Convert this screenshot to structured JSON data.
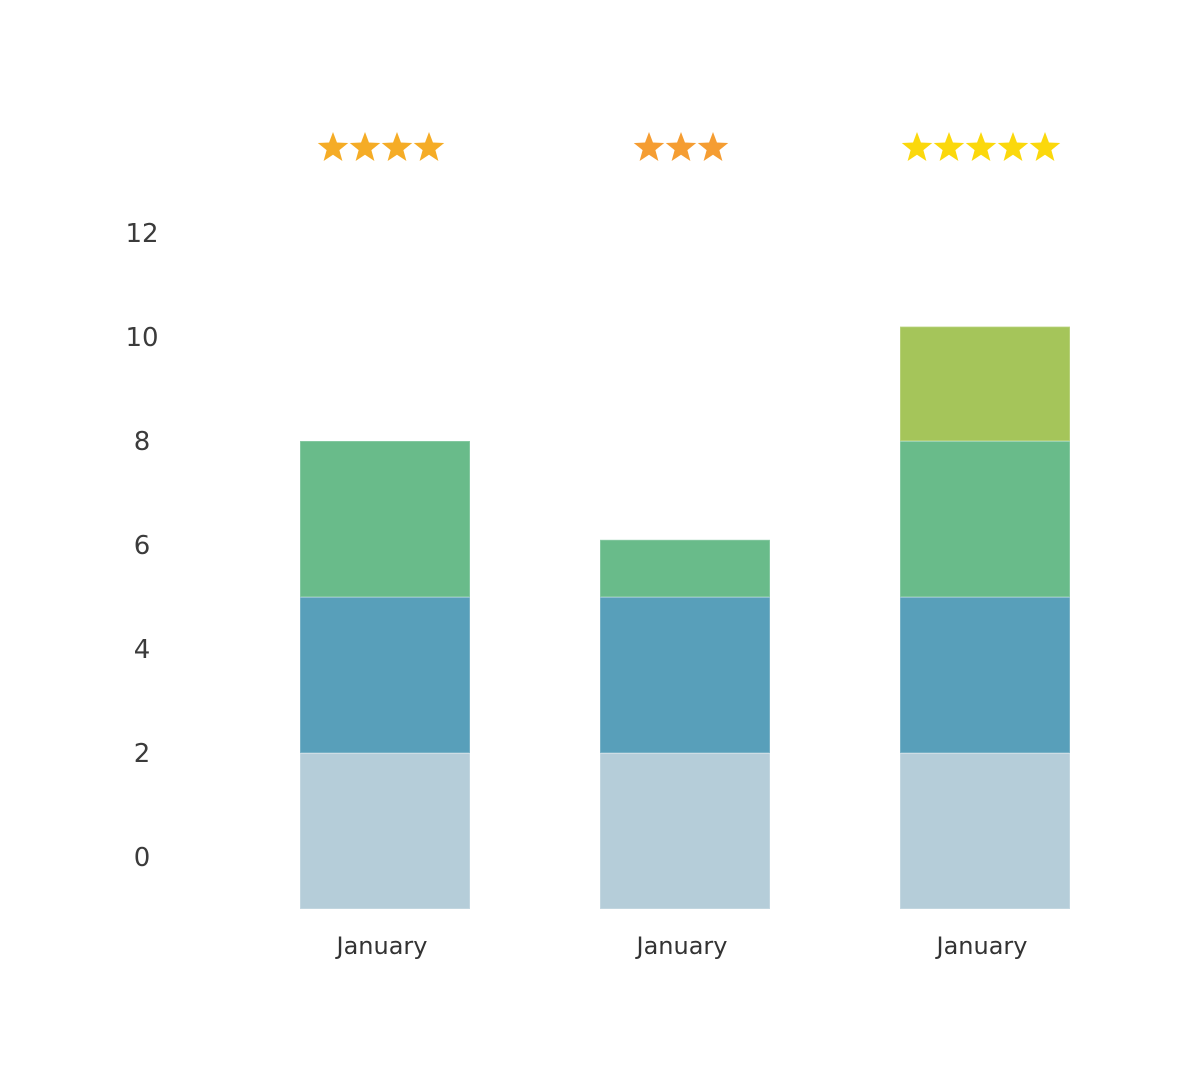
{
  "chart_data": {
    "type": "bar",
    "stacked": true,
    "categories": [
      "January",
      "January",
      "January"
    ],
    "ratings": [
      4,
      3,
      5
    ],
    "rating_colors": [
      "#f5ac26",
      "#f59d32",
      "#fbd80c"
    ],
    "ytick_labels": [
      "0",
      "2",
      "4",
      "6",
      "8",
      "10",
      "12"
    ],
    "ylim": [
      -1,
      13
    ],
    "grid": true,
    "series": [
      {
        "color": "#b5cdd9",
        "values": [
          3,
          3,
          3
        ]
      },
      {
        "color": "#589fba",
        "values": [
          3,
          3,
          3
        ]
      },
      {
        "color": "#69bb8a",
        "values": [
          3,
          1.1,
          3
        ]
      },
      {
        "color": "#a5c55a",
        "values": [
          0,
          0,
          2.2
        ]
      }
    ],
    "title": "",
    "xlabel": "",
    "ylabel": ""
  }
}
